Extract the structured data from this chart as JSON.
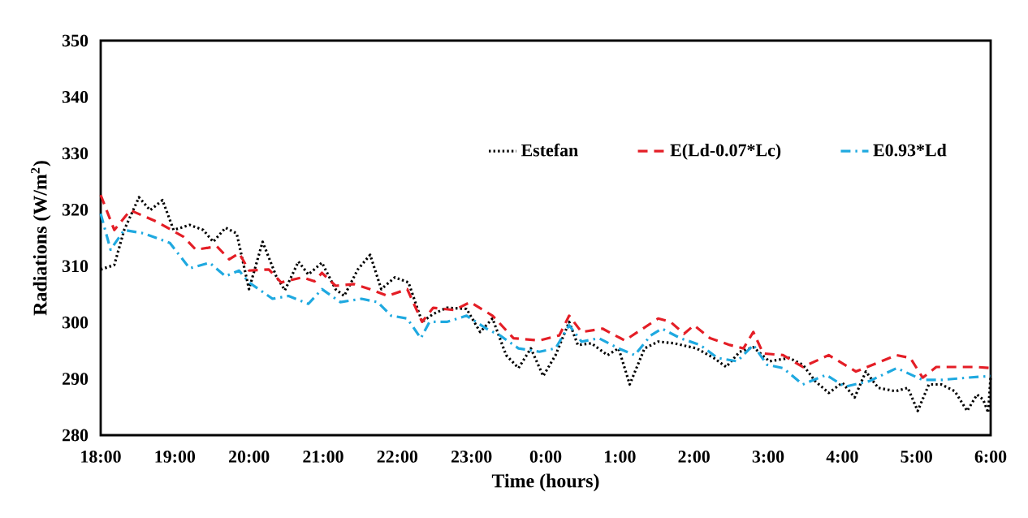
{
  "chart_data": {
    "type": "line",
    "xlabel": "Time (hours)",
    "ylabel": "Radiations (W/m$^{2}$)",
    "xlim": [
      "2000-01-01T18:00",
      "2000-01-02T06:00"
    ],
    "ylim": [
      280,
      350
    ],
    "xticks": [
      {
        "value": "2000-01-01T18:00",
        "label": "18:00"
      },
      {
        "value": "2000-01-01T19:00",
        "label": "19:00"
      },
      {
        "value": "2000-01-01T20:00",
        "label": "20:00"
      },
      {
        "value": "2000-01-01T21:00",
        "label": "21:00"
      },
      {
        "value": "2000-01-01T22:00",
        "label": "22:00"
      },
      {
        "value": "2000-01-01T23:00",
        "label": "23:00"
      },
      {
        "value": "2000-01-02T00:00",
        "label": "0:00"
      },
      {
        "value": "2000-01-02T01:00",
        "label": "1:00"
      },
      {
        "value": "2000-01-02T02:00",
        "label": "2:00"
      },
      {
        "value": "2000-01-02T03:00",
        "label": "3:00"
      },
      {
        "value": "2000-01-02T04:00",
        "label": "4:00"
      },
      {
        "value": "2000-01-02T05:00",
        "label": "5:00"
      },
      {
        "value": "2000-01-02T06:00",
        "label": "6:00"
      }
    ],
    "yticks": [
      280,
      290,
      300,
      310,
      320,
      330,
      340,
      350
    ],
    "grid": false,
    "legend": "top right",
    "marker": "none",
    "series": [
      {
        "name": "Estefan",
        "color": "#000000",
        "line_style": "dotted",
        "x": [
          "2000-01-01T18:00",
          "2000-01-01T18:11",
          "2000-01-01T18:19",
          "2000-01-01T18:31",
          "2000-01-01T18:40",
          "2000-01-01T18:50",
          "2000-01-01T18:59",
          "2000-01-01T19:12",
          "2000-01-01T19:23",
          "2000-01-01T19:31",
          "2000-01-01T19:41",
          "2000-01-01T19:50",
          "2000-01-01T20:00",
          "2000-01-01T20:11",
          "2000-01-01T20:22",
          "2000-01-01T20:29",
          "2000-01-01T20:40",
          "2000-01-01T20:48",
          "2000-01-01T20:59",
          "2000-01-01T21:10",
          "2000-01-01T21:17",
          "2000-01-01T21:28",
          "2000-01-01T21:38",
          "2000-01-01T21:47",
          "2000-01-01T21:58",
          "2000-01-01T22:09",
          "2000-01-01T22:20",
          "2000-01-01T22:29",
          "2000-01-01T22:40",
          "2000-01-01T22:56",
          "2000-01-01T23:07",
          "2000-01-01T23:17",
          "2000-01-01T23:28",
          "2000-01-01T23:38",
          "2000-01-01T23:48",
          "2000-01-01T23:58",
          "2000-01-02T00:08",
          "2000-01-02T00:19",
          "2000-01-02T00:26",
          "2000-01-02T00:37",
          "2000-01-02T00:50",
          "2000-01-02T00:59",
          "2000-01-02T01:08",
          "2000-01-02T01:20",
          "2000-01-02T01:31",
          "2000-01-02T01:44",
          "2000-01-02T02:02",
          "2000-01-02T02:16",
          "2000-01-02T02:26",
          "2000-01-02T02:37",
          "2000-01-02T02:48",
          "2000-01-02T03:01",
          "2000-01-02T03:17",
          "2000-01-02T03:28",
          "2000-01-02T03:38",
          "2000-01-02T03:49",
          "2000-01-02T04:00",
          "2000-01-02T04:10",
          "2000-01-02T04:19",
          "2000-01-02T04:29",
          "2000-01-02T04:43",
          "2000-01-02T04:53",
          "2000-01-02T05:01",
          "2000-01-02T05:10",
          "2000-01-02T05:20",
          "2000-01-02T05:31",
          "2000-01-02T05:41",
          "2000-01-02T05:49",
          "2000-01-02T05:54",
          "2000-01-02T05:58",
          "2000-01-02T06:00"
        ],
        "values": [
          309.4,
          310.2,
          316.4,
          322.2,
          319.9,
          321.7,
          316.4,
          317.3,
          316.4,
          314.3,
          316.8,
          315.8,
          305.9,
          314.3,
          308.2,
          305.7,
          310.8,
          308.5,
          310.6,
          305.9,
          304.7,
          309.4,
          312.0,
          305.9,
          308.0,
          307.1,
          300.1,
          301.5,
          302.6,
          302.4,
          298.3,
          300.7,
          294.2,
          291.9,
          295.4,
          290.5,
          294.2,
          300.1,
          296.0,
          296.3,
          294.2,
          295.4,
          289.0,
          295.4,
          296.6,
          296.3,
          295.4,
          293.7,
          292.1,
          294.8,
          295.6,
          293.1,
          293.7,
          292.5,
          289.6,
          287.5,
          289.3,
          286.7,
          291.3,
          288.4,
          287.8,
          288.4,
          284.3,
          289.0,
          289.0,
          287.8,
          284.3,
          287.2,
          286.3,
          284.0,
          290.5
        ]
      },
      {
        "name": "E(Ld-0.07*Lc)",
        "color": "#e41e26",
        "line_style": "dashed",
        "x": [
          "2000-01-01T18:00",
          "2000-01-01T18:11",
          "2000-01-01T18:24",
          "2000-01-01T18:46",
          "2000-01-01T19:07",
          "2000-01-01T19:17",
          "2000-01-01T19:34",
          "2000-01-01T19:44",
          "2000-01-01T19:52",
          "2000-01-01T20:00",
          "2000-01-01T20:16",
          "2000-01-01T20:26",
          "2000-01-01T20:43",
          "2000-01-01T20:53",
          "2000-01-01T20:59",
          "2000-01-01T21:10",
          "2000-01-01T21:25",
          "2000-01-01T21:38",
          "2000-01-01T21:52",
          "2000-01-01T22:08",
          "2000-01-01T22:20",
          "2000-01-01T22:29",
          "2000-01-01T22:46",
          "2000-01-01T22:59",
          "2000-01-01T23:17",
          "2000-01-01T23:34",
          "2000-01-01T23:55",
          "2000-01-02T00:11",
          "2000-01-02T00:19",
          "2000-01-02T00:29",
          "2000-01-02T00:46",
          "2000-01-02T01:04",
          "2000-01-02T01:31",
          "2000-01-02T01:41",
          "2000-01-02T01:52",
          "2000-01-02T02:00",
          "2000-01-02T02:13",
          "2000-01-02T02:29",
          "2000-01-02T02:40",
          "2000-01-02T02:48",
          "2000-01-02T02:56",
          "2000-01-02T03:12",
          "2000-01-02T03:28",
          "2000-01-02T03:49",
          "2000-01-02T04:11",
          "2000-01-02T04:44",
          "2000-01-02T04:55",
          "2000-01-02T05:05",
          "2000-01-02T05:16",
          "2000-01-02T05:48",
          "2000-01-02T06:00"
        ],
        "values": [
          322.6,
          316.4,
          319.9,
          317.8,
          315.2,
          312.9,
          313.5,
          311.2,
          312.3,
          309.2,
          309.4,
          307.1,
          308.0,
          307.3,
          308.8,
          306.5,
          306.8,
          305.9,
          304.7,
          305.9,
          300.1,
          302.6,
          302.2,
          303.6,
          301.2,
          297.2,
          296.8,
          297.7,
          301.2,
          298.3,
          298.9,
          296.8,
          300.7,
          300.1,
          298.0,
          299.5,
          297.2,
          296.0,
          295.4,
          298.3,
          294.5,
          294.2,
          292.1,
          294.2,
          291.3,
          294.2,
          293.7,
          290.2,
          292.1,
          292.1,
          291.9
        ]
      },
      {
        "name": "E0.93*Ld",
        "color": "#1fa9e0",
        "line_style": "dashdot",
        "x": [
          "2000-01-01T18:00",
          "2000-01-01T18:08",
          "2000-01-01T18:19",
          "2000-01-01T18:35",
          "2000-01-01T18:56",
          "2000-01-01T19:12",
          "2000-01-01T19:28",
          "2000-01-01T19:41",
          "2000-01-01T19:52",
          "2000-01-01T20:00",
          "2000-01-01T20:19",
          "2000-01-01T20:32",
          "2000-01-01T20:48",
          "2000-01-01T20:59",
          "2000-01-01T21:14",
          "2000-01-01T21:31",
          "2000-01-01T21:44",
          "2000-01-01T21:55",
          "2000-01-01T22:08",
          "2000-01-01T22:19",
          "2000-01-01T22:26",
          "2000-01-01T22:40",
          "2000-01-01T22:56",
          "2000-01-01T23:12",
          "2000-01-01T23:23",
          "2000-01-01T23:38",
          "2000-01-01T23:55",
          "2000-01-02T00:08",
          "2000-01-02T00:19",
          "2000-01-02T00:29",
          "2000-01-02T00:43",
          "2000-01-02T00:59",
          "2000-01-02T01:12",
          "2000-01-02T01:25",
          "2000-01-02T01:34",
          "2000-01-02T01:49",
          "2000-01-02T02:05",
          "2000-01-02T02:19",
          "2000-01-02T02:35",
          "2000-01-02T02:48",
          "2000-01-02T02:59",
          "2000-01-02T03:12",
          "2000-01-02T03:28",
          "2000-01-02T03:47",
          "2000-01-02T04:02",
          "2000-01-02T04:22",
          "2000-01-02T04:44",
          "2000-01-02T05:05",
          "2000-01-02T05:20",
          "2000-01-02T05:41",
          "2000-01-02T06:00"
        ],
        "values": [
          319.3,
          312.9,
          316.4,
          315.8,
          314.1,
          309.6,
          310.6,
          308.2,
          309.2,
          307.1,
          304.2,
          304.7,
          303.3,
          305.9,
          303.6,
          304.2,
          303.6,
          301.2,
          300.7,
          297.2,
          300.1,
          300.1,
          301.2,
          298.9,
          297.7,
          295.4,
          294.8,
          295.4,
          299.5,
          296.6,
          297.2,
          295.4,
          294.2,
          297.7,
          298.9,
          297.2,
          296.0,
          293.7,
          293.1,
          296.0,
          292.5,
          291.9,
          289.0,
          290.7,
          288.6,
          289.6,
          291.9,
          289.8,
          289.8,
          290.2,
          290.5
        ]
      }
    ]
  }
}
